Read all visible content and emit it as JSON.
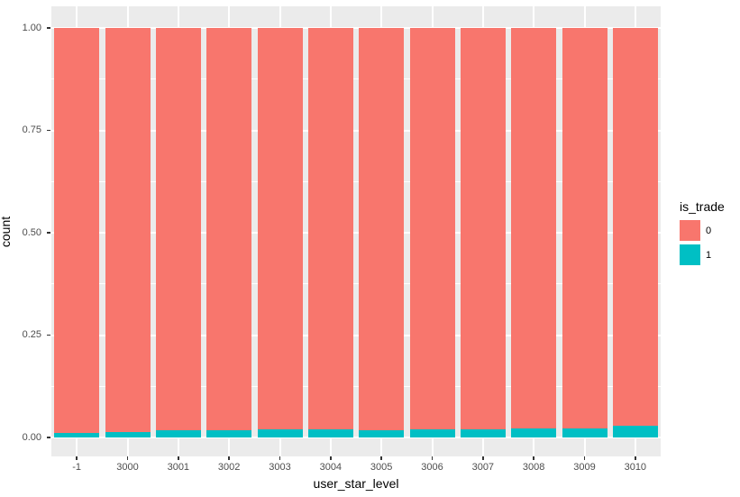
{
  "chart_data": {
    "type": "bar",
    "stacked": true,
    "normalized": true,
    "title": "",
    "xlabel": "user_star_level",
    "ylabel": "count",
    "categories": [
      "-1",
      "3000",
      "3001",
      "3002",
      "3003",
      "3004",
      "3005",
      "3006",
      "3007",
      "3008",
      "3009",
      "3010"
    ],
    "series": [
      {
        "name": "0",
        "color": "#F8766D",
        "values": [
          0.988,
          0.986,
          0.982,
          0.982,
          0.98,
          0.981,
          0.982,
          0.981,
          0.981,
          0.979,
          0.978,
          0.972
        ]
      },
      {
        "name": "1",
        "color": "#00BFC4",
        "values": [
          0.012,
          0.014,
          0.018,
          0.018,
          0.02,
          0.019,
          0.018,
          0.019,
          0.019,
          0.021,
          0.022,
          0.028
        ]
      }
    ],
    "ylim": [
      0,
      1
    ],
    "yticks": [
      0.0,
      0.25,
      0.5,
      0.75,
      1.0
    ],
    "ytick_labels": [
      "0.00",
      "0.25",
      "0.50",
      "0.75",
      "1.00"
    ],
    "grid": true,
    "legend": {
      "title": "is_trade",
      "position": "right",
      "entries": [
        "0",
        "1"
      ]
    }
  },
  "style": {
    "panel_bg": "#EBEBEB",
    "grid_color": "#ffffff",
    "tick_text_color": "#4D4D4D",
    "axis_title_color": "#000000",
    "bar_colors": {
      "0": "#F8766D",
      "1": "#00BFC4"
    }
  }
}
